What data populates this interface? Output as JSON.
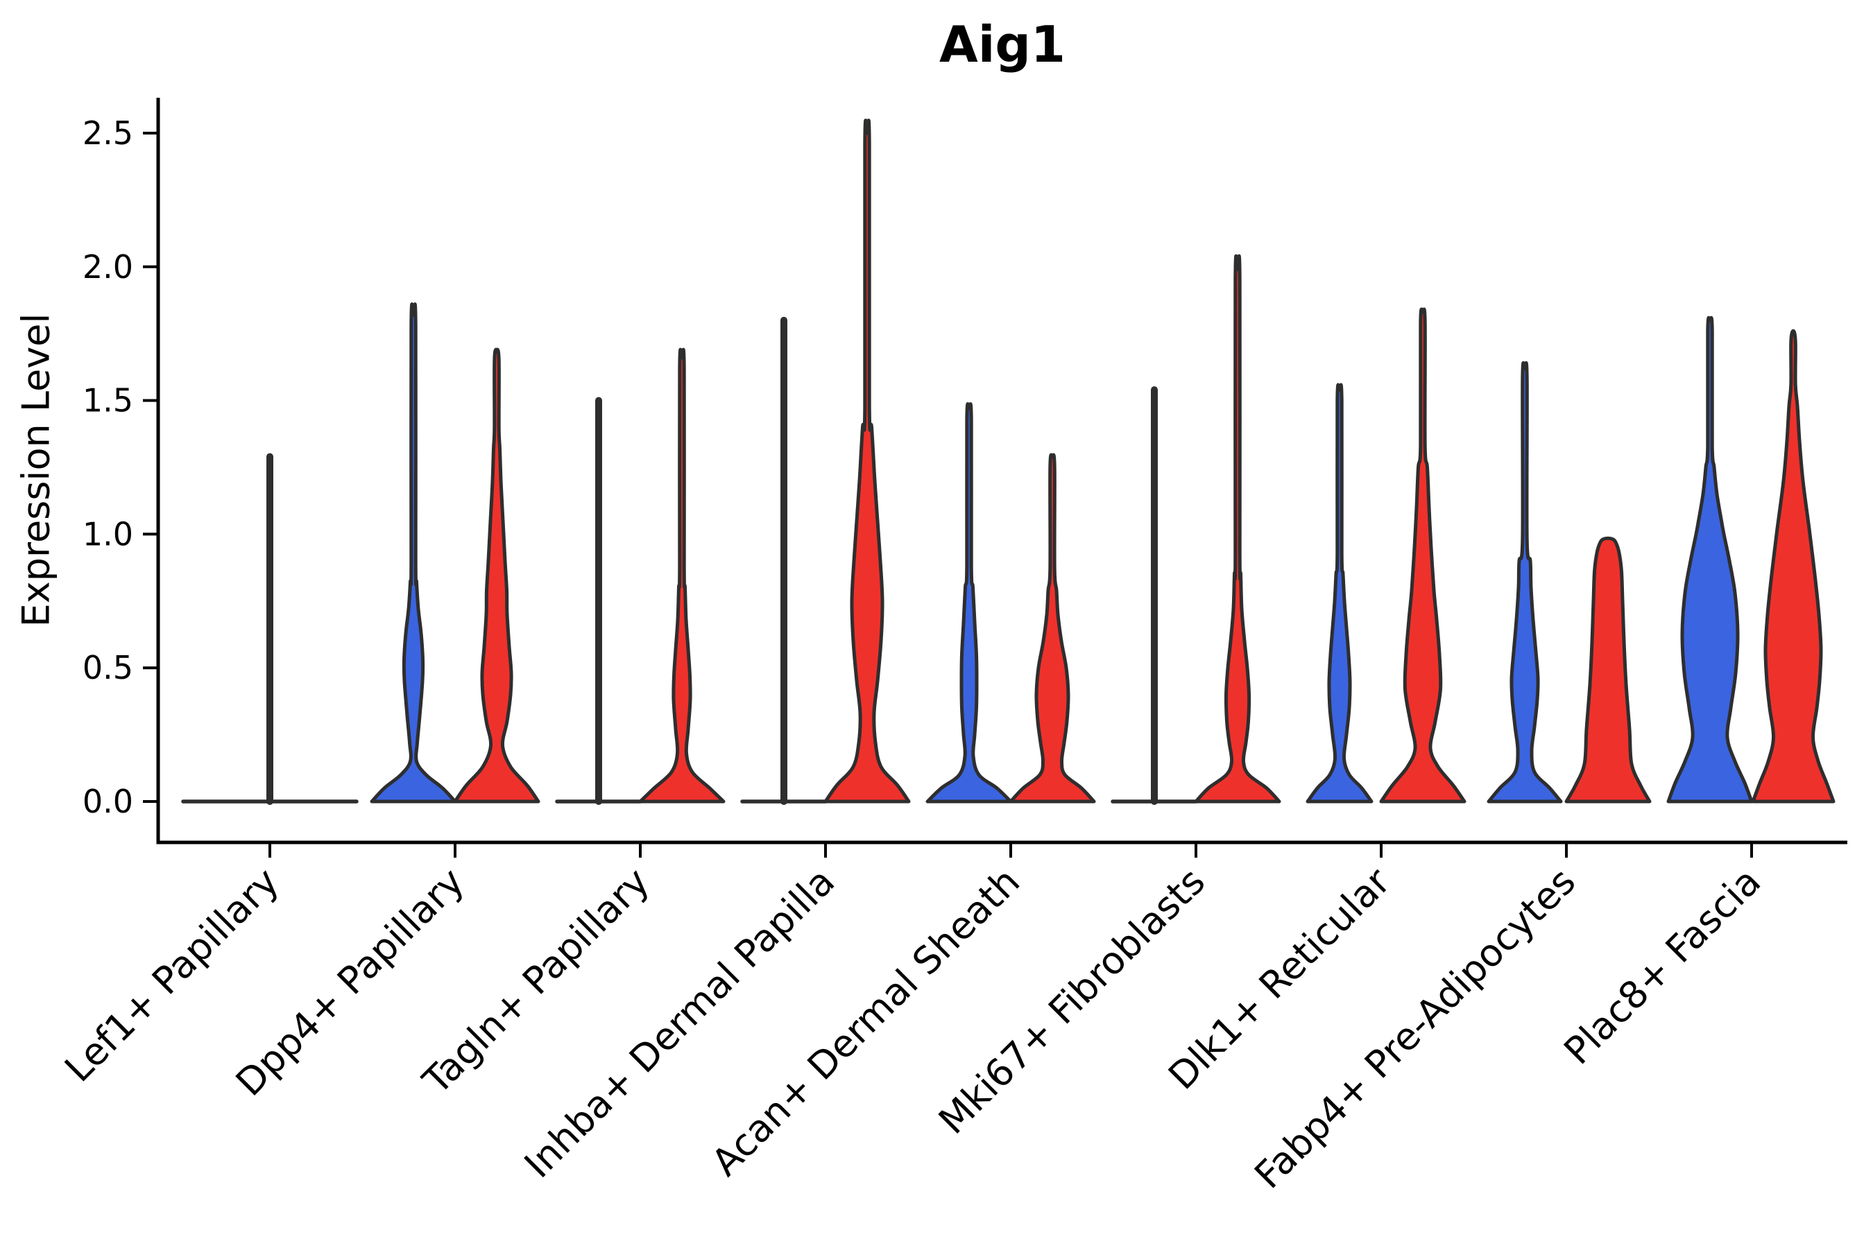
{
  "title": "Aig1",
  "ylabel": "Expression Level",
  "colors": {
    "blue_fill": "#3B64E0",
    "red_fill": "#EF312C",
    "outline": "#2E2E2E",
    "axis": "#000000"
  },
  "chart_data": {
    "type": "violin",
    "title": "Aig1",
    "ylabel": "Expression Level",
    "ylim": [
      -0.16,
      2.63
    ],
    "yticks": [
      "0.0",
      "0.5",
      "1.0",
      "1.5",
      "2.0",
      "2.5"
    ],
    "ytick_values": [
      0.0,
      0.5,
      1.0,
      1.5,
      2.0,
      2.5
    ],
    "grid": false,
    "legend": "none",
    "categories": [
      "Lef1+ Papillary",
      "Dpp4+ Papillary",
      "Tagln+ Papillary",
      "Inhba+ Dermal Papilla",
      "Acan+ Dermal Sheath",
      "Mki67+ Fibroblasts",
      "Dlk1+ Reticular",
      "Fabp4+ Pre-Adipocytes",
      "Plac8+ Fascia"
    ],
    "groups": [
      {
        "category": "Lef1+ Papillary",
        "violins": [
          {
            "fill": "none",
            "kind": "flat",
            "offset": 0,
            "half": 125,
            "max": 1.29
          }
        ]
      },
      {
        "category": "Dpp4+ Papillary",
        "violins": [
          {
            "fill": "blue",
            "kind": "shaped",
            "offset": -1,
            "max": 1.82,
            "profile": [
              [
                0,
                60
              ],
              [
                0.05,
                42
              ],
              [
                0.1,
                18
              ],
              [
                0.15,
                4.5
              ],
              [
                0.22,
                5.5
              ],
              [
                0.32,
                9
              ],
              [
                0.45,
                13
              ],
              [
                0.53,
                13.5
              ],
              [
                0.63,
                11
              ],
              [
                0.72,
                7
              ],
              [
                0.82,
                4.5
              ]
            ]
          },
          {
            "fill": "red",
            "kind": "shaped",
            "offset": 1,
            "max": 1.69,
            "profile": [
              [
                0,
                60
              ],
              [
                0.06,
                44
              ],
              [
                0.13,
                20
              ],
              [
                0.21,
                8.5
              ],
              [
                0.3,
                15
              ],
              [
                0.4,
                20
              ],
              [
                0.48,
                21
              ],
              [
                0.58,
                18
              ],
              [
                0.7,
                15
              ],
              [
                0.79,
                14.5
              ],
              [
                0.9,
                12
              ],
              [
                1.05,
                9
              ],
              [
                1.2,
                6
              ],
              [
                1.32,
                4.5
              ]
            ]
          }
        ]
      },
      {
        "category": "Tagln+ Papillary",
        "violins": [
          {
            "fill": "none",
            "kind": "flat",
            "offset": -1,
            "half": 60,
            "max": 1.5
          },
          {
            "fill": "red",
            "kind": "shaped",
            "offset": 1,
            "max": 1.66,
            "profile": [
              [
                0,
                60
              ],
              [
                0.05,
                40
              ],
              [
                0.11,
                15
              ],
              [
                0.18,
                6.5
              ],
              [
                0.27,
                9
              ],
              [
                0.38,
                12
              ],
              [
                0.47,
                11.5
              ],
              [
                0.57,
                9
              ],
              [
                0.68,
                6
              ],
              [
                0.8,
                4.5
              ]
            ]
          }
        ]
      },
      {
        "category": "Inhba+ Dermal Papilla",
        "violins": [
          {
            "fill": "none",
            "kind": "flat",
            "offset": -1,
            "half": 60,
            "max": 1.8
          },
          {
            "fill": "red",
            "kind": "shaped",
            "offset": 1,
            "max": 2.5,
            "profile": [
              [
                0,
                60
              ],
              [
                0.06,
                44
              ],
              [
                0.13,
                20
              ],
              [
                0.22,
                12
              ],
              [
                0.33,
                10
              ],
              [
                0.45,
                15
              ],
              [
                0.6,
                20
              ],
              [
                0.75,
                22
              ],
              [
                0.9,
                19
              ],
              [
                1.05,
                15
              ],
              [
                1.2,
                11
              ],
              [
                1.4,
                6.5
              ]
            ]
          }
        ]
      },
      {
        "category": "Acan+ Dermal Sheath",
        "violins": [
          {
            "fill": "blue",
            "kind": "shaped",
            "offset": -1,
            "max": 1.47,
            "profile": [
              [
                0,
                60
              ],
              [
                0.05,
                40
              ],
              [
                0.1,
                14
              ],
              [
                0.17,
                6
              ],
              [
                0.25,
                8
              ],
              [
                0.35,
                10.5
              ],
              [
                0.45,
                11
              ],
              [
                0.55,
                10.5
              ],
              [
                0.67,
                8
              ],
              [
                0.8,
                5.5
              ]
            ]
          },
          {
            "fill": "red",
            "kind": "shaped",
            "offset": 1,
            "max": 1.29,
            "profile": [
              [
                0,
                60
              ],
              [
                0.05,
                42
              ],
              [
                0.1,
                18
              ],
              [
                0.15,
                13.5
              ],
              [
                0.22,
                17
              ],
              [
                0.3,
                21
              ],
              [
                0.4,
                23
              ],
              [
                0.5,
                20
              ],
              [
                0.6,
                13
              ],
              [
                0.7,
                8
              ],
              [
                0.79,
                6
              ]
            ]
          }
        ]
      },
      {
        "category": "Mki67+ Fibroblasts",
        "violins": [
          {
            "fill": "none",
            "kind": "flat",
            "offset": -1,
            "half": 60,
            "max": 1.54
          },
          {
            "fill": "red",
            "kind": "shaped",
            "offset": 1,
            "max": 1.99,
            "profile": [
              [
                0,
                60
              ],
              [
                0.05,
                42
              ],
              [
                0.1,
                16
              ],
              [
                0.15,
                8.5
              ],
              [
                0.22,
                12
              ],
              [
                0.3,
                15.5
              ],
              [
                0.4,
                16.5
              ],
              [
                0.5,
                14
              ],
              [
                0.6,
                10
              ],
              [
                0.72,
                6
              ],
              [
                0.85,
                4.5
              ]
            ]
          }
        ]
      },
      {
        "category": "Dlk1+ Reticular",
        "violins": [
          {
            "fill": "blue",
            "kind": "shaped",
            "offset": -1,
            "max": 1.54,
            "profile": [
              [
                0,
                46
              ],
              [
                0.05,
                32
              ],
              [
                0.1,
                14
              ],
              [
                0.16,
                6.5
              ],
              [
                0.25,
                10
              ],
              [
                0.35,
                14
              ],
              [
                0.45,
                15
              ],
              [
                0.55,
                13
              ],
              [
                0.65,
                10
              ],
              [
                0.75,
                7
              ],
              [
                0.85,
                5
              ]
            ]
          },
          {
            "fill": "red",
            "kind": "shaped",
            "offset": 1,
            "max": 1.83,
            "profile": [
              [
                0,
                60
              ],
              [
                0.06,
                44
              ],
              [
                0.13,
                22
              ],
              [
                0.2,
                11
              ],
              [
                0.3,
                18
              ],
              [
                0.42,
                25.5
              ],
              [
                0.55,
                24
              ],
              [
                0.68,
                20
              ],
              [
                0.79,
                16
              ],
              [
                0.95,
                12
              ],
              [
                1.1,
                9
              ],
              [
                1.25,
                6.5
              ]
            ]
          }
        ]
      },
      {
        "category": "Fabp4+ Pre-Adipocytes",
        "violins": [
          {
            "fill": "blue",
            "kind": "shaped",
            "offset": -1,
            "max": 1.62,
            "profile": [
              [
                0,
                52
              ],
              [
                0.05,
                36
              ],
              [
                0.11,
                14
              ],
              [
                0.19,
                10
              ],
              [
                0.28,
                14
              ],
              [
                0.38,
                18
              ],
              [
                0.46,
                19
              ],
              [
                0.56,
                16
              ],
              [
                0.68,
                12
              ],
              [
                0.8,
                9
              ],
              [
                0.9,
                8
              ]
            ]
          },
          {
            "fill": "red",
            "kind": "shaped",
            "offset": 1,
            "max": 0.97,
            "blunt": true,
            "profile": [
              [
                0,
                60
              ],
              [
                0.06,
                47
              ],
              [
                0.14,
                34
              ],
              [
                0.27,
                31
              ],
              [
                0.44,
                26
              ],
              [
                0.6,
                23
              ],
              [
                0.75,
                21
              ],
              [
                0.86,
                19.5
              ],
              [
                0.93,
                16
              ],
              [
                0.97,
                11
              ]
            ]
          }
        ]
      },
      {
        "category": "Plac8+ Fascia",
        "violins": [
          {
            "fill": "blue",
            "kind": "shaped",
            "offset": -1,
            "max": 1.8,
            "profile": [
              [
                0,
                60
              ],
              [
                0.07,
                50
              ],
              [
                0.15,
                36
              ],
              [
                0.24,
                25
              ],
              [
                0.35,
                30
              ],
              [
                0.48,
                37
              ],
              [
                0.63,
                40
              ],
              [
                0.78,
                36
              ],
              [
                0.9,
                28
              ],
              [
                1.0,
                20
              ],
              [
                1.05,
                16.5
              ],
              [
                1.15,
                10
              ],
              [
                1.25,
                6
              ]
            ]
          },
          {
            "fill": "red",
            "kind": "shaped",
            "offset": 1,
            "max": 1.76,
            "profile": [
              [
                0,
                58
              ],
              [
                0.07,
                48
              ],
              [
                0.15,
                36
              ],
              [
                0.24,
                28.5
              ],
              [
                0.35,
                34
              ],
              [
                0.45,
                38
              ],
              [
                0.57,
                40
              ],
              [
                0.7,
                37
              ],
              [
                0.85,
                31
              ],
              [
                1.0,
                24
              ],
              [
                1.05,
                21.5
              ],
              [
                1.2,
                14
              ],
              [
                1.35,
                9
              ],
              [
                1.48,
                6
              ]
            ]
          }
        ]
      }
    ]
  }
}
